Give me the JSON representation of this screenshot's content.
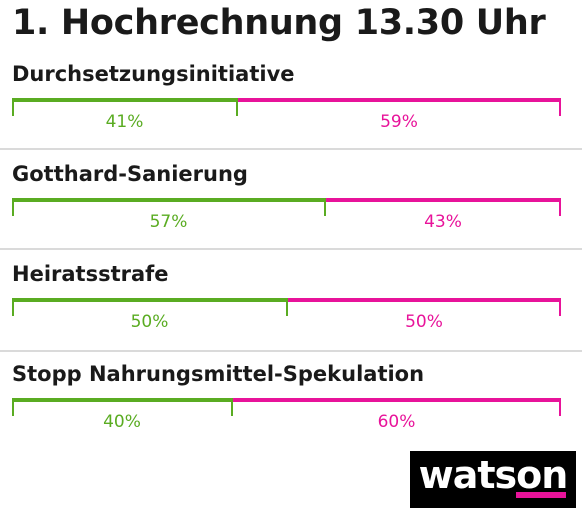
{
  "title": "1. Hochrechnung 13.30 Uhr",
  "colors": {
    "yes": "#5aac22",
    "no": "#e8139a",
    "divider": "#dadada",
    "logo_bg": "#000000",
    "logo_accent": "#e8139a"
  },
  "logo": {
    "text": "watson"
  },
  "chart_data": {
    "type": "bar",
    "title": "1. Hochrechnung 13.30 Uhr",
    "categories": [
      "Durchsetzungsinitiative",
      "Gotthard-Sanierung",
      "Heiratsstrafe",
      "Stopp Nahrungsmittel-Spekulation"
    ],
    "series": [
      {
        "values": [
          41,
          57,
          50,
          40
        ]
      },
      {
        "values": [
          59,
          43,
          50,
          60
        ]
      }
    ],
    "ylim": [
      0,
      100
    ]
  },
  "votes": [
    {
      "name": "Durchsetzungsinitiative",
      "yes_label": "41%",
      "no_label": "59%"
    },
    {
      "name": "Gotthard-Sanierung",
      "yes_label": "57%",
      "no_label": "43%"
    },
    {
      "name": "Heiratsstrafe",
      "yes_label": "50%",
      "no_label": "50%"
    },
    {
      "name": "Stopp Nahrungsmittel-Spekulation",
      "yes_label": "40%",
      "no_label": "60%"
    }
  ]
}
